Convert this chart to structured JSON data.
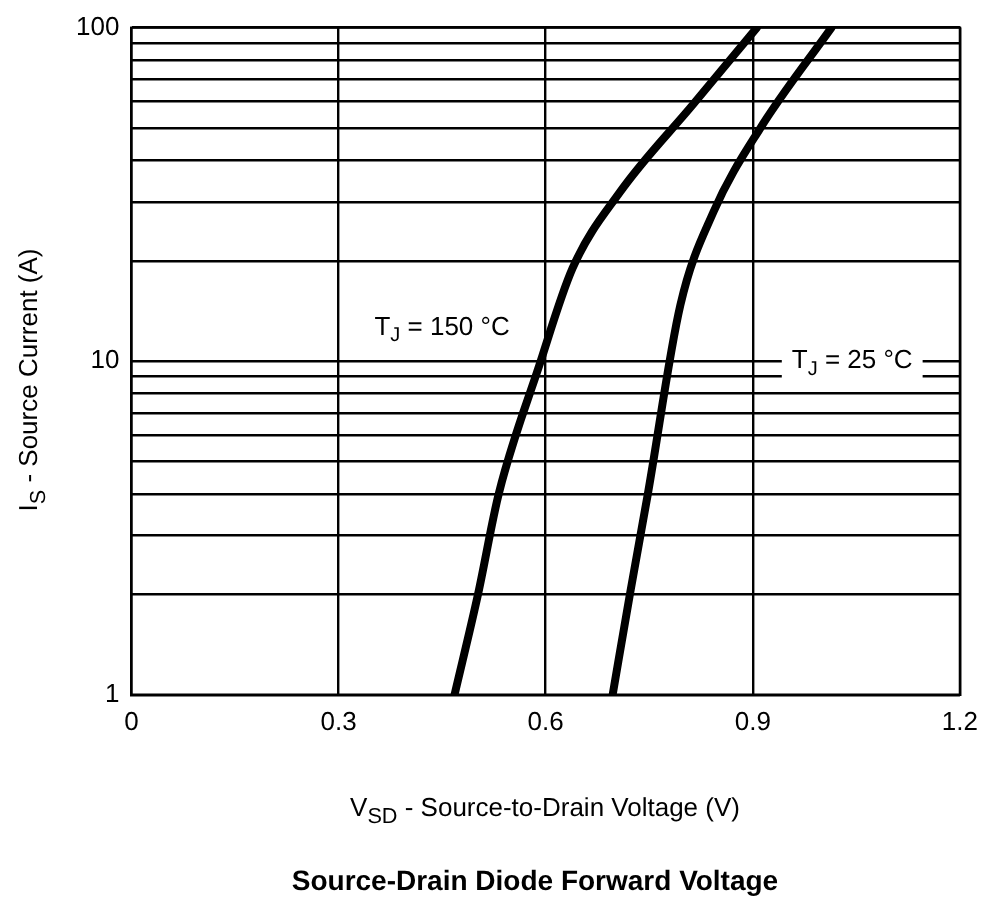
{
  "chart_data": {
    "type": "line",
    "title": "Source-Drain Diode Forward Voltage",
    "xlabel": "V$_{SD}$ - Source-to-Drain Voltage (V)",
    "ylabel": "I$_{S}$ - Source Current (A)",
    "log": "y",
    "grid": true,
    "legend": false,
    "marker": "none",
    "line_style": "solid",
    "xlim": [
      0,
      1.2
    ],
    "xticks": [
      0,
      0.3,
      0.6,
      0.9,
      1.2
    ],
    "ylim": [
      1,
      100
    ],
    "yticks": [
      1,
      {
        "value": 2,
        "label": null
      },
      {
        "value": 3,
        "label": null
      },
      {
        "value": 4,
        "label": null
      },
      {
        "value": 5,
        "label": null
      },
      {
        "value": 6,
        "label": null
      },
      {
        "value": 7,
        "label": null
      },
      {
        "value": 8,
        "label": null
      },
      {
        "value": 9,
        "label": null
      },
      10,
      {
        "value": 20,
        "label": null
      },
      {
        "value": 30,
        "label": null
      },
      {
        "value": 40,
        "label": null
      },
      {
        "value": 50,
        "label": null
      },
      {
        "value": 60,
        "label": null
      },
      {
        "value": 70,
        "label": null
      },
      {
        "value": 80,
        "label": null
      },
      {
        "value": 90,
        "label": null
      },
      100
    ],
    "series": [
      {
        "color": "#000000",
        "x": [
          0.468,
          0.502,
          0.532,
          0.59,
          0.639,
          0.707,
          0.814,
          0.906
        ],
        "values": [
          1,
          2,
          4,
          9.6,
          19,
          32,
          59,
          100
        ]
      },
      {
        "color": "#000000",
        "x": [
          0.697,
          0.722,
          0.748,
          0.795,
          0.843,
          0.911,
          1.014
        ],
        "values": [
          1,
          2,
          4,
          14.7,
          28,
          50,
          100
        ]
      }
    ],
    "annotations": [
      "T$_{J}$ = 150 °C",
      "T$_{J}$ = 25 °C"
    ]
  }
}
